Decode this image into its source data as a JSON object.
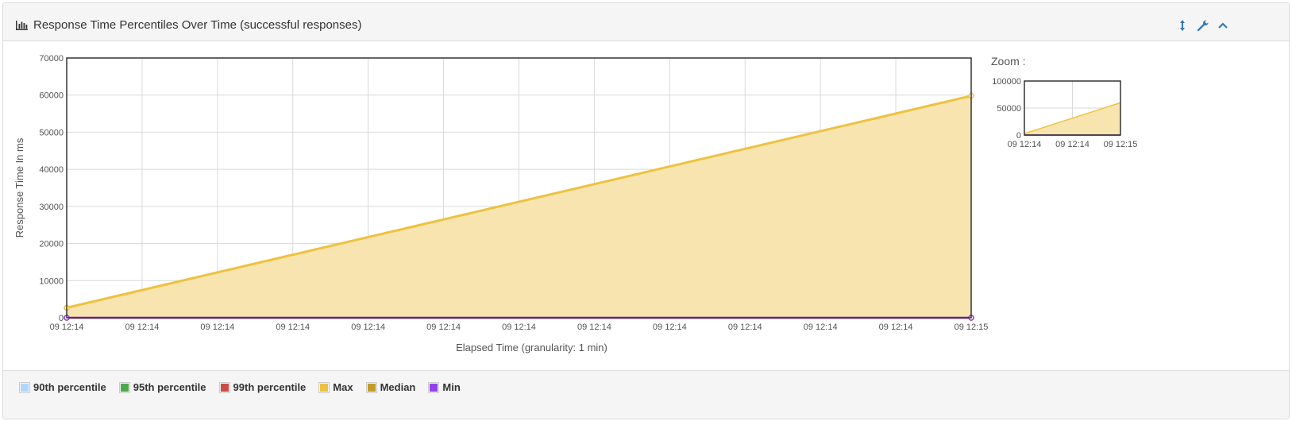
{
  "panel": {
    "title": "Response Time Percentiles Over Time (successful responses)",
    "icons": [
      "bar-chart-icon",
      "resize-vertical-icon",
      "wrench-icon",
      "chevron-up-icon"
    ]
  },
  "colors": {
    "90th percentile": "#afd8f8",
    "95th percentile": "#4da74d",
    "99th percentile": "#cb4b4b",
    "Max": "#edc240",
    "Median": "#c49a2a",
    "Min": "#9440ed",
    "max_fill": "#f7e4ae"
  },
  "chart_data": {
    "type": "area",
    "xlabel": "Elapsed Time (granularity: 1 min)",
    "ylabel": "Response Time In ms",
    "ylim": [
      0,
      70000
    ],
    "yticks": [
      "0",
      "10000",
      "20000",
      "30000",
      "40000",
      "50000",
      "60000",
      "70000"
    ],
    "xticks": [
      "09 12:14",
      "09 12:14",
      "09 12:14",
      "09 12:14",
      "09 12:14",
      "09 12:14",
      "09 12:14",
      "09 12:14",
      "09 12:14",
      "09 12:14",
      "09 12:14",
      "09 12:14",
      "09 12:15"
    ],
    "x": [
      "09 12:14",
      "09 12:15"
    ],
    "series": [
      {
        "name": "90th percentile",
        "values": [
          0,
          0
        ]
      },
      {
        "name": "95th percentile",
        "values": [
          0,
          0
        ]
      },
      {
        "name": "99th percentile",
        "values": [
          0,
          0
        ]
      },
      {
        "name": "Max",
        "values": [
          2700,
          59800
        ]
      },
      {
        "name": "Median",
        "values": [
          0,
          0
        ]
      },
      {
        "name": "Min",
        "values": [
          0,
          0
        ]
      }
    ],
    "grid": true,
    "legend_position": "bottom",
    "zoom": {
      "label": "Zoom :",
      "ylim": [
        0,
        100000
      ],
      "yticks": [
        "0",
        "50000",
        "100000"
      ],
      "xticks": [
        "09 12:14",
        "09 12:14",
        "09 12:15"
      ]
    }
  },
  "legend": [
    {
      "label": "90th percentile"
    },
    {
      "label": "95th percentile"
    },
    {
      "label": "99th percentile"
    },
    {
      "label": "Max"
    },
    {
      "label": "Median"
    },
    {
      "label": "Min"
    }
  ]
}
